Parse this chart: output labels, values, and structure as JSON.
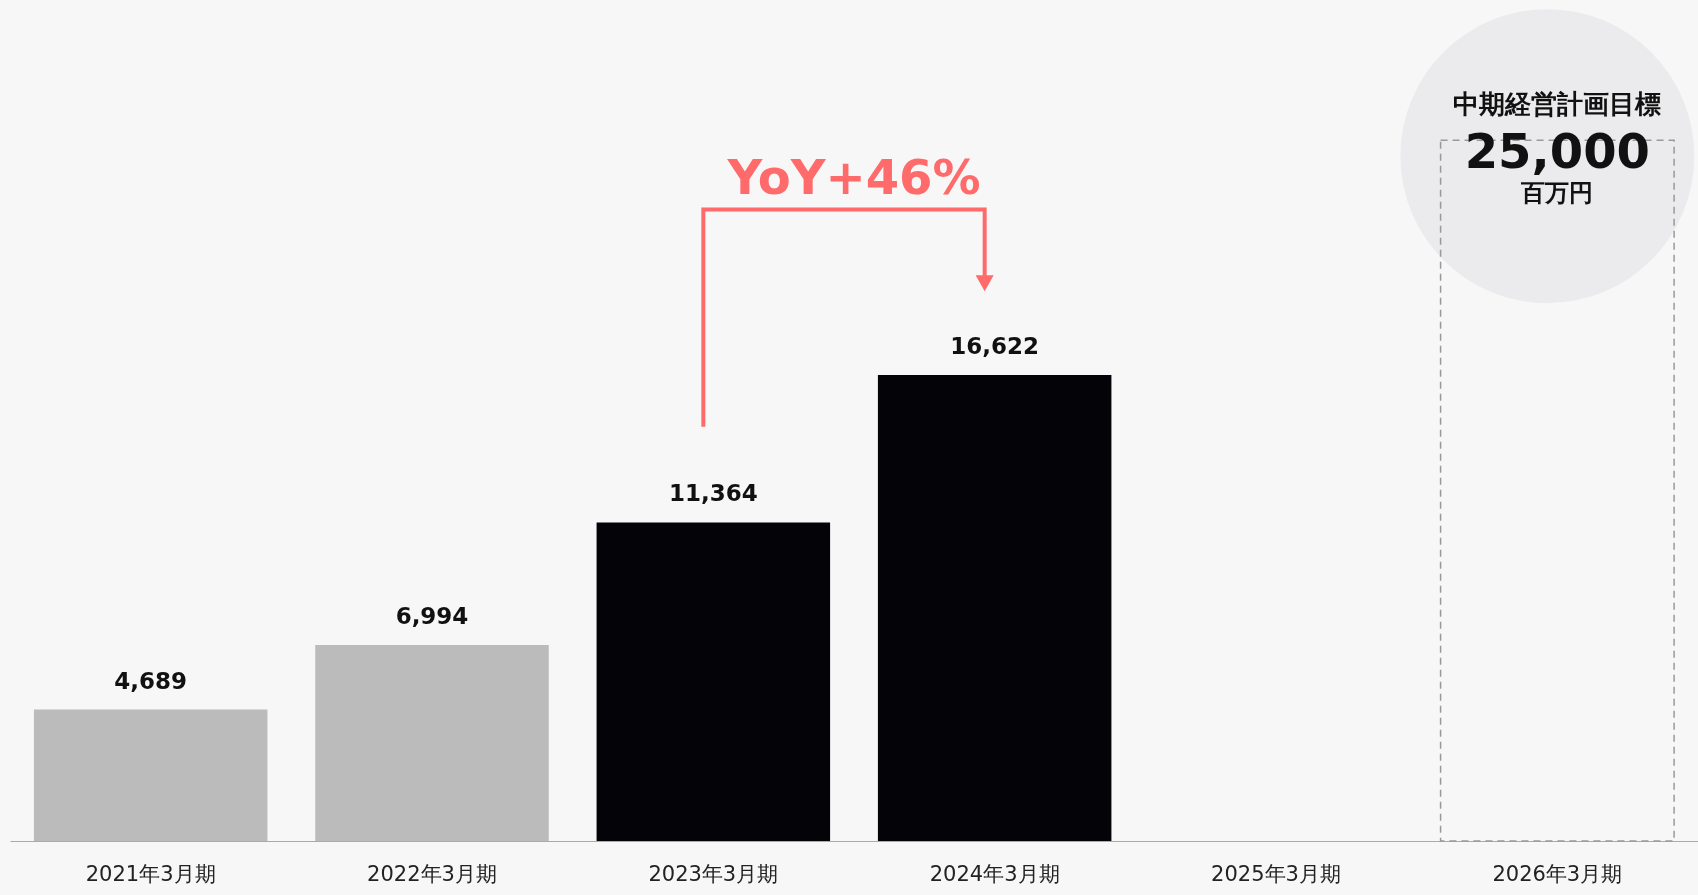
{
  "chart_data": {
    "type": "bar",
    "categories": [
      "2021年3月期",
      "2022年3月期",
      "2023年3月期",
      "2024年3月期",
      "2025年3月期",
      "2026年3月期"
    ],
    "series": [
      {
        "color": "#bbbbbb",
        "values": [
          4689,
          6994,
          null,
          null,
          null,
          null
        ],
        "value_labels": [
          "4,689",
          "6,994",
          null,
          null,
          null,
          null
        ]
      },
      {
        "color": "#040308",
        "values": [
          null,
          null,
          11364,
          16622,
          null,
          null
        ],
        "value_labels": [
          null,
          null,
          "11,364",
          "16,622",
          null,
          null
        ]
      },
      {
        "color": "#999999",
        "line_style": "dashed",
        "values": [
          null,
          null,
          null,
          null,
          null,
          25000
        ],
        "value_labels": [
          null,
          null,
          null,
          null,
          null,
          "25,000"
        ]
      }
    ],
    "annotations": [
      "YoY+46%",
      {
        "text": "中期経営計画目標",
        "x": "2026年3月期",
        "y": 25000
      },
      {
        "text": "百万円",
        "x": "2026年3月期",
        "y": 25000
      }
    ]
  }
}
